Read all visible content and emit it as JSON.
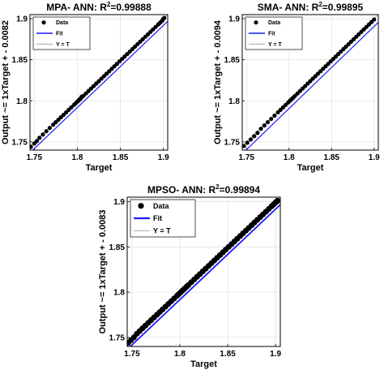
{
  "chart_data": [
    {
      "type": "scatter",
      "title_prefix": "MPA- ANN: R",
      "title_sup": "2",
      "title_suffix": "=0.99888",
      "xlabel": "Target",
      "ylabel": "Output ~= 1xTarget + - 0.0082",
      "xlim": [
        1.745,
        1.905
      ],
      "ylim": [
        1.74,
        1.905
      ],
      "xticks": [
        "1.75",
        "1.8",
        "1.85",
        "1.9"
      ],
      "yticks": [
        "1.75",
        "1.8",
        "1.85",
        "1.9"
      ],
      "grid": true,
      "legend_position": "top-left",
      "legend": [
        "Data",
        "Fit",
        "Y = T"
      ],
      "fit": {
        "slope": 1,
        "intercept": -0.0082
      },
      "x": [
        1.746,
        1.75,
        1.753,
        1.756,
        1.76,
        1.764,
        1.768,
        1.772,
        1.775,
        1.778,
        1.781,
        1.784,
        1.787,
        1.79,
        1.793,
        1.796,
        1.798,
        1.8,
        1.801,
        1.802,
        1.803,
        1.804,
        1.805,
        1.807,
        1.81,
        1.813,
        1.816,
        1.819,
        1.822,
        1.825,
        1.828,
        1.831,
        1.834,
        1.837,
        1.84,
        1.843,
        1.846,
        1.849,
        1.852,
        1.855,
        1.858,
        1.861,
        1.864,
        1.867,
        1.87,
        1.873,
        1.876,
        1.879,
        1.882,
        1.885,
        1.888,
        1.891,
        1.894,
        1.896,
        1.898,
        1.899,
        1.9,
        1.901
      ],
      "y": [
        1.744,
        1.748,
        1.751,
        1.755,
        1.759,
        1.763,
        1.767,
        1.771,
        1.774,
        1.777,
        1.78,
        1.783,
        1.786,
        1.789,
        1.792,
        1.795,
        1.797,
        1.799,
        1.8,
        1.801,
        1.802,
        1.803,
        1.805,
        1.806,
        1.809,
        1.812,
        1.815,
        1.818,
        1.821,
        1.824,
        1.827,
        1.83,
        1.833,
        1.836,
        1.839,
        1.842,
        1.845,
        1.848,
        1.851,
        1.854,
        1.857,
        1.86,
        1.863,
        1.866,
        1.869,
        1.872,
        1.875,
        1.878,
        1.881,
        1.884,
        1.887,
        1.89,
        1.893,
        1.895,
        1.897,
        1.898,
        1.9,
        1.901
      ]
    },
    {
      "type": "scatter",
      "title_prefix": "SMA- ANN: R",
      "title_sup": "2",
      "title_suffix": "=0.99895",
      "xlabel": "Target",
      "ylabel": "Output ~= 1xTarget + - 0.0094",
      "xlim": [
        1.745,
        1.905
      ],
      "ylim": [
        1.74,
        1.905
      ],
      "xticks": [
        "1.75",
        "1.8",
        "1.85",
        "1.9"
      ],
      "yticks": [
        "1.75",
        "1.8",
        "1.85",
        "1.9"
      ],
      "grid": true,
      "legend_position": "top-left",
      "legend": [
        "Data",
        "Fit",
        "Y = T"
      ],
      "fit": {
        "slope": 1,
        "intercept": -0.0094
      },
      "x": [
        1.747,
        1.751,
        1.755,
        1.759,
        1.763,
        1.767,
        1.771,
        1.775,
        1.779,
        1.783,
        1.787,
        1.79,
        1.793,
        1.796,
        1.799,
        1.801,
        1.803,
        1.805,
        1.807,
        1.81,
        1.813,
        1.816,
        1.819,
        1.822,
        1.825,
        1.828,
        1.831,
        1.834,
        1.837,
        1.84,
        1.843,
        1.846,
        1.849,
        1.852,
        1.855,
        1.858,
        1.861,
        1.864,
        1.867,
        1.87,
        1.873,
        1.876,
        1.879,
        1.882,
        1.885,
        1.888,
        1.891,
        1.894,
        1.897,
        1.9
      ],
      "y": [
        1.745,
        1.749,
        1.753,
        1.757,
        1.761,
        1.766,
        1.77,
        1.774,
        1.778,
        1.782,
        1.786,
        1.789,
        1.792,
        1.795,
        1.798,
        1.8,
        1.802,
        1.804,
        1.806,
        1.809,
        1.812,
        1.815,
        1.818,
        1.821,
        1.824,
        1.827,
        1.83,
        1.833,
        1.836,
        1.839,
        1.842,
        1.845,
        1.848,
        1.851,
        1.854,
        1.857,
        1.86,
        1.863,
        1.866,
        1.869,
        1.872,
        1.875,
        1.878,
        1.881,
        1.884,
        1.887,
        1.89,
        1.893,
        1.896,
        1.899
      ]
    },
    {
      "type": "scatter",
      "title_prefix": "MPSO- ANN: R",
      "title_sup": "2",
      "title_suffix": "=0.99894",
      "xlabel": "Target",
      "ylabel": "Output ~= 1xTarget + - 0.0083",
      "xlim": [
        1.745,
        1.905
      ],
      "ylim": [
        1.74,
        1.905
      ],
      "xticks": [
        "1.75",
        "1.8",
        "1.85",
        "1.9"
      ],
      "yticks": [
        "1.75",
        "1.8",
        "1.85",
        "1.9"
      ],
      "grid": true,
      "legend_position": "top-left",
      "legend": [
        "Data",
        "Fit",
        "Y = T"
      ],
      "fit": {
        "slope": 1,
        "intercept": -0.0083
      },
      "x": [
        1.746,
        1.749,
        1.752,
        1.755,
        1.758,
        1.761,
        1.764,
        1.767,
        1.77,
        1.773,
        1.776,
        1.779,
        1.782,
        1.785,
        1.788,
        1.791,
        1.794,
        1.797,
        1.799,
        1.801,
        1.803,
        1.805,
        1.807,
        1.809,
        1.812,
        1.815,
        1.818,
        1.821,
        1.824,
        1.827,
        1.83,
        1.833,
        1.836,
        1.839,
        1.842,
        1.845,
        1.848,
        1.851,
        1.854,
        1.857,
        1.86,
        1.863,
        1.866,
        1.869,
        1.872,
        1.875,
        1.878,
        1.881,
        1.884,
        1.887,
        1.89,
        1.893,
        1.896,
        1.898,
        1.9,
        1.901,
        1.902
      ],
      "y": [
        1.744,
        1.747,
        1.75,
        1.754,
        1.757,
        1.76,
        1.763,
        1.766,
        1.769,
        1.772,
        1.775,
        1.778,
        1.781,
        1.784,
        1.787,
        1.79,
        1.793,
        1.796,
        1.798,
        1.8,
        1.802,
        1.804,
        1.806,
        1.808,
        1.811,
        1.814,
        1.817,
        1.82,
        1.823,
        1.826,
        1.829,
        1.832,
        1.835,
        1.838,
        1.841,
        1.844,
        1.847,
        1.85,
        1.853,
        1.856,
        1.859,
        1.862,
        1.865,
        1.868,
        1.871,
        1.874,
        1.877,
        1.88,
        1.883,
        1.886,
        1.889,
        1.892,
        1.895,
        1.897,
        1.899,
        1.9,
        1.901
      ]
    }
  ],
  "colors": {
    "data_marker": "#000000",
    "fit_line": "#1a1aff",
    "identity_line": "#9a9a9a",
    "grid": "#e3e3e3",
    "axes": "#000000",
    "background": "#ffffff"
  }
}
